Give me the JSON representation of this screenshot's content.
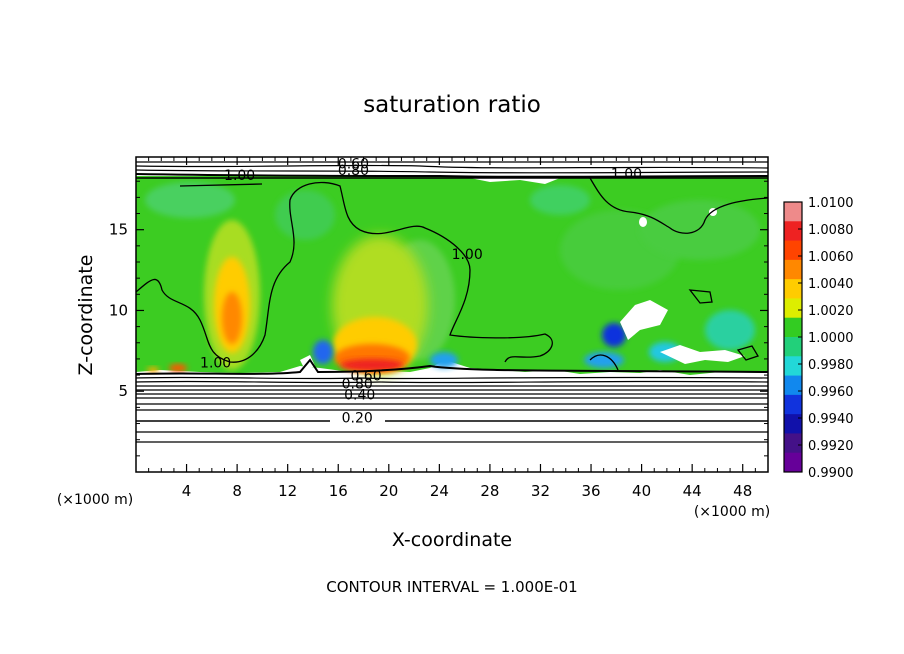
{
  "chart_data": {
    "type": "heatmap",
    "title": "saturation ratio",
    "xlabel": "X-coordinate",
    "ylabel": "Z-coordinate",
    "x_unit": "(×1000 m)",
    "z_unit": "(×1000 m)",
    "xlim": [
      0,
      50
    ],
    "ylim": [
      0,
      19.5
    ],
    "x_ticks": [
      4,
      8,
      12,
      16,
      20,
      24,
      28,
      32,
      36,
      40,
      44,
      48
    ],
    "y_ticks": [
      5,
      10,
      15
    ],
    "colorbar": {
      "labels": [
        "1.0100",
        "1.0080",
        "1.0060",
        "1.0040",
        "1.0020",
        "1.0000",
        "0.9980",
        "0.9960",
        "0.9940",
        "0.9920",
        "0.9900"
      ],
      "colors": [
        "#ee8a8a",
        "#ee2222",
        "#ff4400",
        "#ff8800",
        "#ffcc00",
        "#ddee00",
        "#33cc22",
        "#22d07a",
        "#22d8d8",
        "#1188ee",
        "#1133dd",
        "#1111aa",
        "#441188",
        "#660099"
      ],
      "min": 0.99,
      "max": 1.01
    },
    "contour_labels": [
      {
        "text": "1.00",
        "x": 8.2,
        "z": 18.2
      },
      {
        "text": "1.00",
        "x": 26.2,
        "z": 13.3
      },
      {
        "text": "1.00",
        "x": 38.8,
        "z": 18.3
      },
      {
        "text": "1.00",
        "x": 6.3,
        "z": 6.6
      },
      {
        "text": "0.60",
        "x": 17.2,
        "z": 18.9
      },
      {
        "text": "0.80",
        "x": 17.2,
        "z": 18.5
      },
      {
        "text": "0.60",
        "x": 18.2,
        "z": 5.8
      },
      {
        "text": "0.80",
        "x": 17.5,
        "z": 5.3
      },
      {
        "text": "0.40",
        "x": 17.7,
        "z": 4.6
      },
      {
        "text": "0.20",
        "x": 17.5,
        "z": 3.2
      }
    ],
    "annotation": "CONTOUR INTERVAL = 1.000E-01"
  }
}
